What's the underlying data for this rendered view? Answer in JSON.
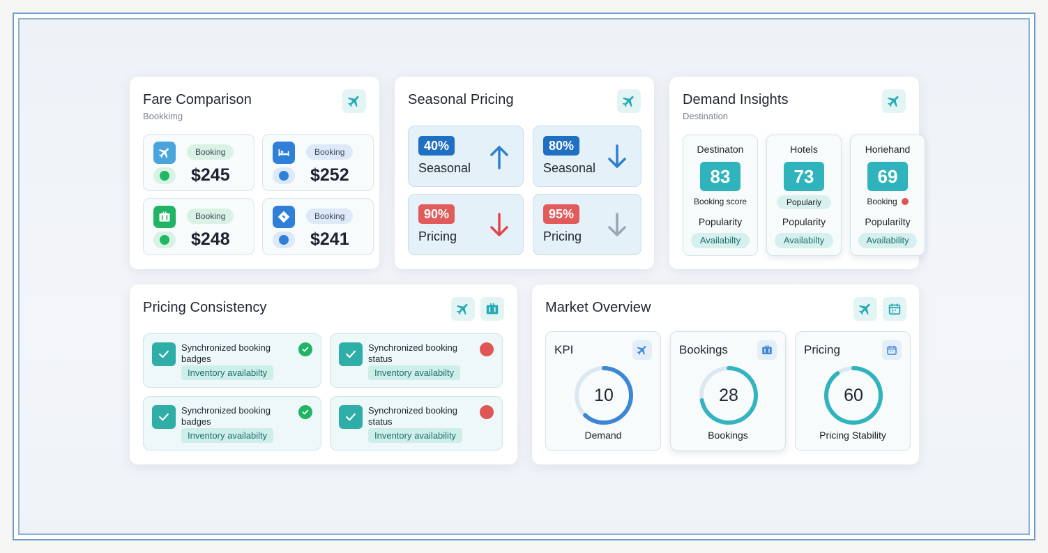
{
  "fare_comparison": {
    "title": "Fare Comparison",
    "subtitle": "Bookkimg",
    "header_icon": "plane-icon",
    "tiles": [
      {
        "icon": "plane-icon",
        "badge": "Booking",
        "price": "$245",
        "dot_color": "#20b864",
        "badge_color": "#d9f2e5"
      },
      {
        "icon": "bed-icon",
        "badge": "Booking",
        "price": "$252",
        "dot_color": "#2f7fd9",
        "badge_color": "#dde9f8"
      },
      {
        "icon": "luggage-icon",
        "badge": "Booking",
        "price": "$248",
        "dot_color": "#20b864",
        "badge_color": "#d9f2e5"
      },
      {
        "icon": "ticket-icon",
        "badge": "Booking",
        "price": "$241",
        "dot_color": "#2f7fd9",
        "badge_color": "#dde9f8"
      }
    ]
  },
  "seasonal_pricing": {
    "title": "Seasonal Pricing",
    "header_icon": "plane-icon",
    "tiles": [
      {
        "percent": "40%",
        "label": "Seasonal",
        "badge_color": "#1f6fc2",
        "arrow": "up",
        "arrow_color": "#2f7fd0"
      },
      {
        "percent": "80%",
        "label": "Seasonal",
        "badge_color": "#1f6fc2",
        "arrow": "down",
        "arrow_color": "#2f7fd0"
      },
      {
        "percent": "90%",
        "label": "Pricing",
        "badge_color": "#e25b5b",
        "arrow": "down",
        "arrow_color": "#e04848"
      },
      {
        "percent": "95%",
        "label": "Pricing",
        "badge_color": "#e25b5b",
        "arrow": "down",
        "arrow_color": "#9aa6b2"
      }
    ]
  },
  "demand_insights": {
    "title": "Demand Insights",
    "subtitle": "Destination",
    "header_icon": "plane-icon",
    "tiles": [
      {
        "name": "Destinaton",
        "score": "83",
        "meta": "Booking score",
        "popularity": "Popularity",
        "availability": "Availabilty"
      },
      {
        "name": "Hotels",
        "score": "73",
        "meta": "Populariy",
        "popularity": "Popularity",
        "availability": "Availabilty"
      },
      {
        "name": "Horiehand",
        "score": "69",
        "meta": "Booking",
        "popularity": "Popularilty",
        "availability": "Availability"
      }
    ]
  },
  "pricing_consistency": {
    "title": "Pricing Consistency",
    "header_icons": [
      "plane-icon",
      "luggage-icon"
    ],
    "tiles": [
      {
        "text": "Synchronized booking badges",
        "pill": "Inventory availabilty",
        "status": "ok"
      },
      {
        "text": "Synchronized  booking status",
        "pill": "Inventory availabilty",
        "status": "error"
      },
      {
        "text": "Synchronized booking badges",
        "pill": "Inventory availabilty",
        "status": "ok"
      },
      {
        "text": "Synchronized  booking status",
        "pill": "Inventory availability",
        "status": "error"
      }
    ]
  },
  "market_overview": {
    "title": "Market Overview",
    "header_icons": [
      "plane-icon",
      "calendar-icon"
    ],
    "tiles": [
      {
        "title": "KPI",
        "icon": "plane-icon",
        "value": "10",
        "caption": "Demand",
        "progress": 0.62,
        "ring_color": "#3d86d4"
      },
      {
        "title": "Bookings",
        "icon": "briefcase-icon",
        "value": "28",
        "caption": "Bookings",
        "progress": 0.72,
        "ring_color": "#36b3c0"
      },
      {
        "title": "Pricing",
        "icon": "calendar-icon",
        "value": "60",
        "caption": "Pricing Stability",
        "progress": 0.9,
        "ring_color": "#2fb3bd"
      }
    ]
  },
  "colors": {
    "accent_teal": "#2fb3bd",
    "accent_blue": "#1f6fc2",
    "alert_red": "#e05555",
    "ok_green": "#20b864"
  }
}
